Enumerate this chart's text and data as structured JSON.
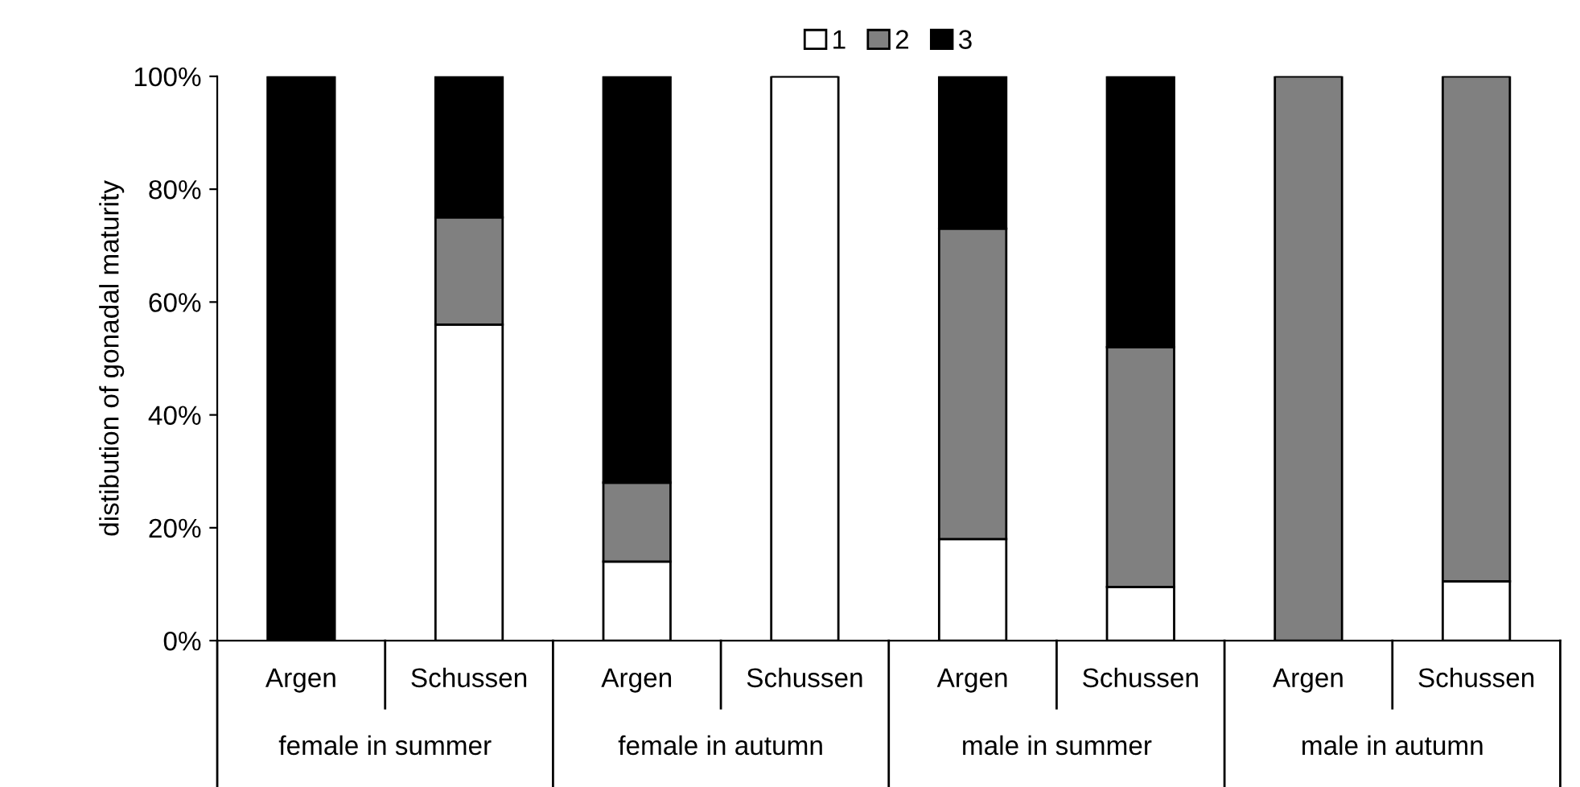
{
  "chart_data": {
    "type": "bar",
    "stacked": true,
    "ylabel": "distibution of gonadal maturity",
    "categories": [
      "Argen",
      "Schussen",
      "Argen",
      "Schussen",
      "Argen",
      "Schussen",
      "Argen",
      "Schussen"
    ],
    "series": [
      {
        "name": "1",
        "color": "#ffffff",
        "values": [
          0,
          56,
          14,
          100,
          18,
          9.5,
          0,
          10.5
        ]
      },
      {
        "name": "2",
        "color": "#808080",
        "values": [
          0,
          19,
          14,
          0,
          55,
          42.5,
          100,
          89.5
        ]
      },
      {
        "name": "3",
        "color": "#000000",
        "values": [
          100,
          25,
          72,
          0,
          27,
          48,
          0,
          0
        ]
      }
    ],
    "annotations": [
      "female in summer",
      "female in autumn",
      "male in summer",
      "male in autumn"
    ],
    "ylim": [
      0,
      100
    ],
    "yticks": [
      {
        "value": 0,
        "label": "0%"
      },
      {
        "value": 20,
        "label": "20%"
      },
      {
        "value": 40,
        "label": "40%"
      },
      {
        "value": 60,
        "label": "60%"
      },
      {
        "value": 80,
        "label": "80%"
      },
      {
        "value": 100,
        "label": "100%"
      }
    ],
    "grid": false,
    "legend": "top"
  }
}
